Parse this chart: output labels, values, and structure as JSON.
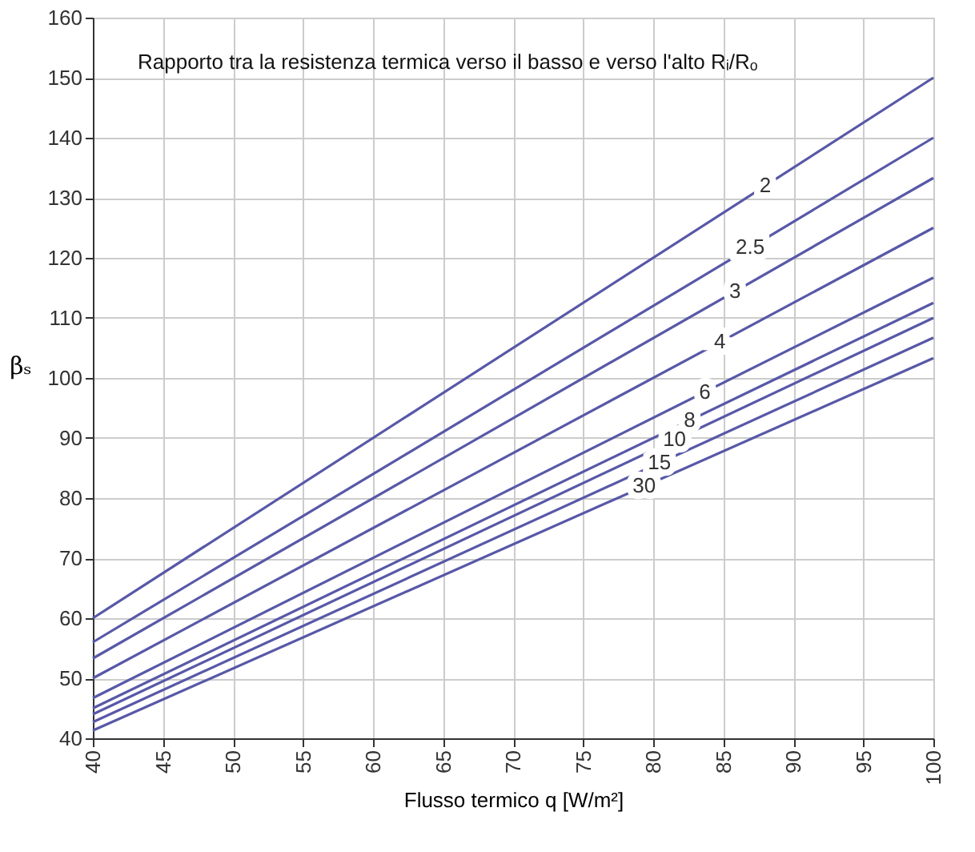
{
  "chart_data": {
    "type": "line",
    "xlabel": "Flusso termico q [W/m²]",
    "ylabel": "βₛ",
    "annotations": [
      "Rapporto tra la resistenza termica verso il basso e verso l'alto Rᵢ/Rₒ"
    ],
    "x": [
      40,
      100
    ],
    "series": [
      {
        "name": "2",
        "color": "#5858a8",
        "values": [
          60,
          150
        ]
      },
      {
        "name": "2.5",
        "color": "#5858a8",
        "values": [
          56,
          140
        ]
      },
      {
        "name": "3",
        "color": "#5858a8",
        "values": [
          53.3,
          133.3
        ]
      },
      {
        "name": "4",
        "color": "#5858a8",
        "values": [
          50,
          125
        ]
      },
      {
        "name": "6",
        "color": "#5858a8",
        "values": [
          46.7,
          116.7
        ]
      },
      {
        "name": "8",
        "color": "#5858a8",
        "values": [
          45,
          112.5
        ]
      },
      {
        "name": "10",
        "color": "#5858a8",
        "values": [
          44,
          110
        ]
      },
      {
        "name": "15",
        "color": "#5858a8",
        "values": [
          42.7,
          106.7
        ]
      },
      {
        "name": "30",
        "color": "#5858a8",
        "values": [
          41.3,
          103.3
        ]
      }
    ],
    "xlim": [
      40,
      100
    ],
    "xticks": [
      40,
      45,
      50,
      55,
      60,
      65,
      70,
      75,
      80,
      85,
      90,
      95,
      100
    ],
    "ylim": [
      40,
      160
    ],
    "yticks": [
      40,
      50,
      60,
      70,
      80,
      90,
      100,
      110,
      120,
      130,
      140,
      150,
      160
    ],
    "grid": true,
    "legend": false,
    "marker": "none",
    "line_style": "solid"
  }
}
